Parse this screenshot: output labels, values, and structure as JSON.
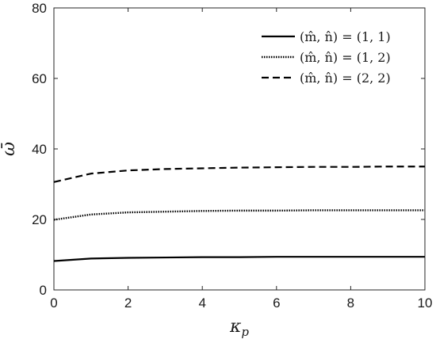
{
  "chart_data": {
    "type": "line",
    "xlabel": "κp",
    "ylabel": "ω̄",
    "xlim": [
      0,
      10
    ],
    "ylim": [
      0,
      80
    ],
    "x_ticks": [
      "0",
      "2",
      "4",
      "6",
      "8",
      "10"
    ],
    "y_ticks": [
      "0",
      "20",
      "40",
      "60",
      "80"
    ],
    "grid": false,
    "legend_position": "top-right",
    "x": [
      0,
      1,
      2,
      3,
      4,
      5,
      6,
      7,
      8,
      9,
      10
    ],
    "series": [
      {
        "name": "(m̂, n̂) = (1, 1)",
        "style": "solid",
        "values": [
          8.2,
          8.9,
          9.1,
          9.2,
          9.3,
          9.3,
          9.4,
          9.4,
          9.4,
          9.4,
          9.4
        ]
      },
      {
        "name": "(m̂, n̂) = (1, 2)",
        "style": "dotted",
        "values": [
          19.9,
          21.4,
          22.0,
          22.2,
          22.4,
          22.5,
          22.5,
          22.6,
          22.6,
          22.6,
          22.6
        ]
      },
      {
        "name": "(m̂, n̂) = (2, 2)",
        "style": "dashed",
        "values": [
          30.6,
          33.0,
          33.9,
          34.3,
          34.5,
          34.7,
          34.8,
          34.9,
          34.9,
          35.0,
          35.0
        ]
      }
    ]
  }
}
